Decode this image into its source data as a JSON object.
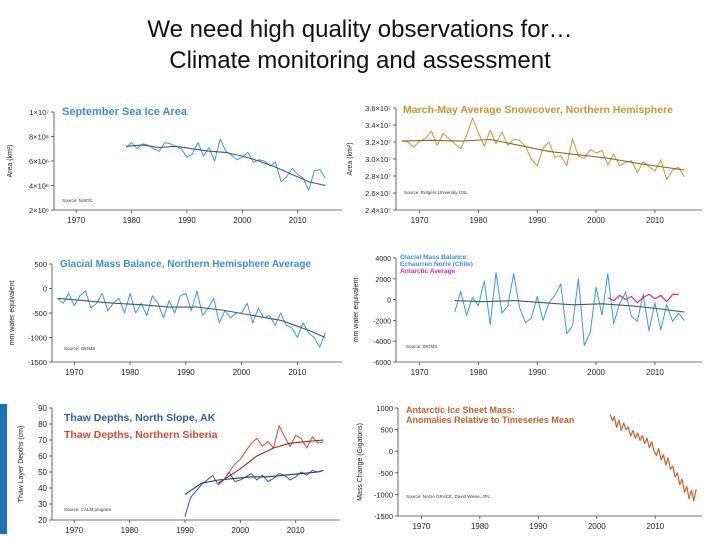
{
  "slide": {
    "title_line1": "We need high quality observations for…",
    "title_line2": "Climate monitoring and assessment"
  },
  "colors": {
    "seaice_title": "#3d8fd6",
    "obs_blue": "#3a9ad9",
    "trend_navy": "#3b5a88",
    "snow": "#c9962e",
    "pink": "#d2289f",
    "thaw_blue": "#2d5ca8",
    "thaw_red": "#cf4b32",
    "antarctic": "#c8602a"
  },
  "chart_data": [
    {
      "id": "sea-ice",
      "type": "line",
      "title": "September Sea Ice Area",
      "ylabel": "Area (km²)",
      "source": "Source: NSIDC",
      "xlim": [
        1966,
        2018
      ],
      "ylim": [
        2000000,
        10000000
      ],
      "x_ticks": [
        "1970",
        "1980",
        "1990",
        "2000",
        "2010"
      ],
      "y_ticks": [
        "1×10⁷",
        "8×10⁶",
        "6×10⁶",
        "4×10⁶",
        "2×10⁶"
      ],
      "series": [
        {
          "x": [
            1979,
            1980,
            1981,
            1982,
            1983,
            1984,
            1985,
            1986,
            1987,
            1988,
            1989,
            1990,
            1991,
            1992,
            1993,
            1994,
            1995,
            1996,
            1997,
            1998,
            1999,
            2000,
            2001,
            2002,
            2003,
            2004,
            2005,
            2006,
            2007,
            2008,
            2009,
            2010,
            2011,
            2012,
            2013,
            2014,
            2015
          ],
          "y": [
            7100000,
            7500000,
            7000000,
            7400000,
            7300000,
            7000000,
            6800000,
            7500000,
            7400000,
            7200000,
            7000000,
            6300000,
            6600000,
            7500000,
            6400000,
            7100000,
            6000000,
            7800000,
            6800000,
            6500000,
            6100000,
            6300000,
            6700000,
            5900000,
            6100000,
            6000000,
            5600000,
            5900000,
            4300000,
            4700000,
            5400000,
            4900000,
            4600000,
            3600000,
            5200000,
            5300000,
            4600000
          ]
        },
        {
          "x": [
            1979,
            1982,
            1985,
            1988,
            1991,
            1994,
            1997,
            2000,
            2003,
            2006,
            2009,
            2012,
            2015
          ],
          "y": [
            7200000,
            7300000,
            7100000,
            7200000,
            7000000,
            6800000,
            6700000,
            6400000,
            6000000,
            5500000,
            4900000,
            4300000,
            4000000
          ]
        }
      ]
    },
    {
      "id": "snow",
      "type": "line",
      "title": "March-May Average Snowcover, Northern Hemisphere",
      "ylabel": "Area (km²)",
      "source": "Source: Rutgers University GSL",
      "xlim": [
        1966,
        2018
      ],
      "ylim": [
        24000000,
        36000000
      ],
      "x_ticks": [
        "1970",
        "1980",
        "1990",
        "2000",
        "2010"
      ],
      "y_ticks": [
        "3.6×10⁷",
        "3.4×10⁷",
        "3.2×10⁷",
        "3.0×10⁷",
        "2.8×10⁷",
        "2.6×10⁷",
        "2.4×10⁷"
      ],
      "series": [
        {
          "x": [
            1967,
            1968,
            1969,
            1970,
            1971,
            1972,
            1973,
            1974,
            1975,
            1976,
            1977,
            1978,
            1979,
            1980,
            1981,
            1982,
            1983,
            1984,
            1985,
            1986,
            1987,
            1988,
            1989,
            1990,
            1991,
            1992,
            1993,
            1994,
            1995,
            1996,
            1997,
            1998,
            1999,
            2000,
            2001,
            2002,
            2003,
            2004,
            2005,
            2006,
            2007,
            2008,
            2009,
            2010,
            2011,
            2012,
            2013,
            2014,
            2015
          ],
          "y": [
            32200000,
            32000000,
            31400000,
            32100000,
            32400000,
            33300000,
            31600000,
            33000000,
            32400000,
            31800000,
            31200000,
            32800000,
            34800000,
            33100000,
            31500000,
            33400000,
            31800000,
            33200000,
            31600000,
            32300000,
            32200000,
            31500000,
            30000000,
            29200000,
            31300000,
            32000000,
            30200000,
            30400000,
            29200000,
            32400000,
            30300000,
            30100000,
            31100000,
            30700000,
            31000000,
            29300000,
            30600000,
            29200000,
            29600000,
            29800000,
            28400000,
            29700000,
            29100000,
            28600000,
            29900000,
            27600000,
            28700000,
            29000000,
            27900000
          ]
        },
        {
          "x": [
            1967,
            1972,
            1977,
            1982,
            1987,
            1992,
            1997,
            2002,
            2007,
            2012,
            2015
          ],
          "y": [
            32100000,
            32200000,
            32100000,
            32300000,
            31600000,
            30900000,
            30500000,
            30100000,
            29500000,
            29000000,
            28700000
          ]
        }
      ]
    },
    {
      "id": "glacial",
      "type": "line",
      "title": "Glacial Mass Balance, Northern Hemisphere Average",
      "ylabel": "mm water equivalent",
      "source": "Source: WGMS",
      "xlim": [
        1966,
        2018
      ],
      "ylim": [
        -1500,
        500
      ],
      "x_ticks": [
        "1970",
        "1980",
        "1990",
        "2000",
        "2010"
      ],
      "y_ticks": [
        "500",
        "0",
        "-500",
        "-1000",
        "-1500"
      ],
      "series": [
        {
          "x": [
            1967,
            1968,
            1969,
            1970,
            1971,
            1972,
            1973,
            1974,
            1975,
            1976,
            1977,
            1978,
            1979,
            1980,
            1981,
            1982,
            1983,
            1984,
            1985,
            1986,
            1987,
            1988,
            1989,
            1990,
            1991,
            1992,
            1993,
            1994,
            1995,
            1996,
            1997,
            1998,
            1999,
            2000,
            2001,
            2002,
            2003,
            2004,
            2005,
            2006,
            2007,
            2008,
            2009,
            2010,
            2011,
            2012,
            2013,
            2014,
            2015
          ],
          "y": [
            -200,
            -300,
            -100,
            -350,
            -150,
            -50,
            -400,
            -300,
            -100,
            -450,
            -300,
            -200,
            -500,
            -100,
            -500,
            -300,
            -550,
            -150,
            -300,
            -600,
            -250,
            -500,
            -150,
            -100,
            -450,
            -50,
            -550,
            -400,
            -200,
            -700,
            -450,
            -600,
            -500,
            -500,
            -300,
            -700,
            -400,
            -600,
            -550,
            -750,
            -500,
            -750,
            -800,
            -1000,
            -700,
            -900,
            -1000,
            -1200,
            -900
          ]
        },
        {
          "x": [
            1967,
            1972,
            1977,
            1982,
            1987,
            1992,
            1997,
            2002,
            2007,
            2012,
            2015
          ],
          "y": [
            -200,
            -250,
            -300,
            -330,
            -380,
            -380,
            -450,
            -550,
            -650,
            -850,
            -1000
          ]
        }
      ]
    },
    {
      "id": "glacial-southern",
      "type": "line",
      "title": "Glacial Mass Balance:",
      "subtitle": "Echaurren Norte (Chile)",
      "title2": "Antarctic Average",
      "ylabel": "mm water equivalent",
      "source": "Source: WGMS",
      "xlim": [
        1966,
        2018
      ],
      "ylim": [
        -6000,
        4000
      ],
      "x_ticks": [
        "1970",
        "1980",
        "1990",
        "2000",
        "2010"
      ],
      "y_ticks": [
        "4000",
        "2000",
        "0",
        "-2000",
        "-4000",
        "-6000"
      ],
      "series": [
        {
          "x": [
            1976,
            1977,
            1978,
            1979,
            1980,
            1981,
            1982,
            1983,
            1984,
            1985,
            1986,
            1987,
            1988,
            1989,
            1990,
            1991,
            1992,
            1993,
            1994,
            1995,
            1996,
            1997,
            1998,
            1999,
            2000,
            2001,
            2002,
            2003,
            2004,
            2005,
            2006,
            2007,
            2008,
            2009,
            2010,
            2011,
            2012,
            2013,
            2014,
            2015
          ],
          "y": [
            -1200,
            800,
            -1500,
            200,
            -600,
            1800,
            -2400,
            2600,
            -1300,
            -600,
            2500,
            -800,
            -2200,
            -1800,
            300,
            -2000,
            -300,
            400,
            1500,
            -3300,
            -2500,
            2000,
            -4400,
            -3200,
            1200,
            -1500,
            2500,
            -2300,
            -400,
            700,
            -1600,
            -2100,
            500,
            -3000,
            -300,
            -2900,
            -500,
            -2100,
            -1300,
            -2000
          ]
        },
        {
          "x": [
            1976,
            1981,
            1986,
            1991,
            1996,
            2001,
            2006,
            2011,
            2015
          ],
          "y": [
            -100,
            -200,
            -100,
            -300,
            -500,
            -400,
            -600,
            -900,
            -1200
          ]
        },
        {
          "x": [
            2002,
            2003,
            2004,
            2005,
            2006,
            2007,
            2008,
            2009,
            2010,
            2011,
            2012,
            2013,
            2014
          ],
          "y": [
            200,
            -100,
            400,
            0,
            300,
            -300,
            200,
            500,
            100,
            400,
            -200,
            500,
            500
          ]
        }
      ]
    },
    {
      "id": "thaw",
      "type": "line",
      "title": "Thaw Depths, North Slope, AK",
      "title2": "Thaw Depths, Northern Siberia",
      "ylabel": "Thaw Layer Depths (cm)",
      "source": "Source: CALM program",
      "xlim": [
        1966,
        2018
      ],
      "ylim": [
        20,
        90
      ],
      "x_ticks": [
        "1970",
        "1980",
        "1990",
        "2000",
        "2010"
      ],
      "y_ticks": [
        "90",
        "80",
        "70",
        "60",
        "50",
        "40",
        "30",
        "20"
      ],
      "series": [
        {
          "x": [
            1990,
            1991,
            1992,
            1993,
            1994,
            1995,
            1996,
            1997,
            1998,
            1999,
            2000,
            2001,
            2002,
            2003,
            2004,
            2005,
            2006,
            2007,
            2008,
            2009,
            2010,
            2011,
            2012,
            2013,
            2014,
            2015
          ],
          "y": [
            22,
            34,
            38,
            42,
            45,
            48,
            42,
            45,
            50,
            44,
            45,
            47,
            49,
            45,
            48,
            44,
            46,
            49,
            48,
            45,
            47,
            50,
            48,
            51,
            50,
            51
          ]
        },
        {
          "x": [
            1990,
            1993,
            1996,
            1999,
            2002,
            2005,
            2008,
            2011,
            2014,
            2015
          ],
          "y": [
            36,
            43,
            45,
            46,
            47,
            47,
            48,
            49,
            50,
            51
          ]
        },
        {
          "x": [
            1996,
            1997,
            1998,
            1999,
            2000,
            2001,
            2002,
            2003,
            2004,
            2005,
            2006,
            2007,
            2008,
            2009,
            2010,
            2011,
            2012,
            2013,
            2014,
            2015
          ],
          "y": [
            42,
            45,
            50,
            55,
            58,
            63,
            68,
            71,
            66,
            69,
            65,
            79,
            72,
            66,
            73,
            71,
            65,
            72,
            68,
            69
          ]
        },
        {
          "x": [
            1996,
            2000,
            2003,
            2006,
            2009,
            2012,
            2015
          ],
          "y": [
            43,
            52,
            60,
            65,
            68,
            69,
            70
          ]
        }
      ]
    },
    {
      "id": "antarctic",
      "type": "line",
      "title": "Antarctic Ice Sheet Mass:",
      "title2": "Anomalies Relative to Timeseries Mean",
      "ylabel": "Mass Change (Gigatons)",
      "source": "Source: NASA GRACE, David Wiese, JPL",
      "xlim": [
        1966,
        2018
      ],
      "ylim": [
        -1500,
        1000
      ],
      "x_ticks": [
        "1970",
        "1980",
        "1990",
        "2000",
        "2010"
      ],
      "y_ticks": [
        "1000",
        "500",
        "0",
        "-500",
        "-1000",
        "-1500"
      ],
      "series": [
        {
          "x": [
            2002.3,
            2002.7,
            2003.0,
            2003.4,
            2003.8,
            2004.2,
            2004.6,
            2005.0,
            2005.4,
            2005.8,
            2006.2,
            2006.6,
            2007.0,
            2007.4,
            2007.8,
            2008.2,
            2008.6,
            2009.0,
            2009.4,
            2009.8,
            2010.2,
            2010.6,
            2011.0,
            2011.4,
            2011.8,
            2012.2,
            2012.6,
            2013.0,
            2013.4,
            2013.8,
            2014.2,
            2014.6,
            2015.0,
            2015.4,
            2015.8,
            2016.2,
            2016.6,
            2017.0
          ],
          "y": [
            850,
            700,
            800,
            550,
            720,
            480,
            650,
            500,
            560,
            350,
            480,
            300,
            420,
            250,
            360,
            180,
            300,
            80,
            220,
            0,
            -100,
            60,
            -200,
            -80,
            -320,
            -150,
            -420,
            -350,
            -600,
            -500,
            -780,
            -650,
            -950,
            -820,
            -1100,
            -900,
            -1150,
            -880
          ]
        }
      ]
    }
  ]
}
